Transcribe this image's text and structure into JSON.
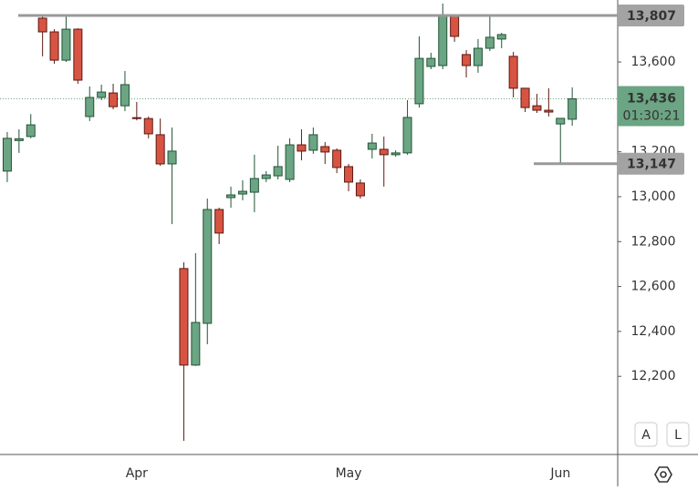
{
  "chart_data": {
    "type": "candlestick",
    "categories": [
      null,
      null,
      null,
      null,
      null,
      null,
      null,
      null,
      null,
      null,
      null,
      "Apr",
      null,
      null,
      null,
      null,
      null,
      null,
      null,
      null,
      null,
      null,
      null,
      null,
      null,
      null,
      null,
      null,
      null,
      "May",
      null,
      null,
      null,
      null,
      null,
      null,
      null,
      null,
      null,
      null,
      null,
      null,
      null,
      null,
      null,
      null,
      null,
      "Jun",
      null
    ],
    "open": [
      13114,
      13250,
      13268,
      13795,
      13734,
      13608,
      13746,
      13357,
      13442,
      13462,
      13405,
      13352,
      13348,
      13276,
      13146,
      12680,
      12250,
      12436,
      12943,
      12996,
      13012,
      13020,
      13081,
      13093,
      13077,
      13231,
      13207,
      13223,
      13207,
      13134,
      13061,
      13211,
      13211,
      13187,
      13195,
      13414,
      13580,
      13584,
      13803,
      13633,
      13584,
      13661,
      13702,
      13625,
      13483,
      13405,
      13385,
      13324,
      13345
    ],
    "high": [
      13288,
      13300,
      13368,
      13803,
      13746,
      13803,
      13750,
      13491,
      13499,
      13503,
      13560,
      13422,
      13357,
      13348,
      13308,
      12708,
      12749,
      12992,
      12951,
      13045,
      13073,
      13187,
      13114,
      13227,
      13260,
      13300,
      13308,
      13243,
      13215,
      13146,
      13077,
      13280,
      13268,
      13207,
      13430,
      13714,
      13641,
      13860,
      13811,
      13653,
      13702,
      13803,
      13730,
      13645,
      13483,
      13458,
      13483,
      13349,
      13487
    ],
    "low": [
      13065,
      13195,
      13260,
      13625,
      13592,
      13600,
      13503,
      13337,
      13430,
      13389,
      13381,
      13340,
      13260,
      13138,
      12878,
      11913,
      12246,
      12343,
      12789,
      12951,
      12984,
      12931,
      13065,
      13077,
      13065,
      13162,
      13191,
      13146,
      13105,
      13024,
      12992,
      13170,
      13045,
      13178,
      13187,
      13397,
      13568,
      13568,
      13690,
      13531,
      13552,
      13649,
      13661,
      13442,
      13377,
      13373,
      13357,
      13147,
      13316
    ],
    "close": [
      13260,
      13258,
      13320,
      13734,
      13608,
      13746,
      13519,
      13442,
      13466,
      13401,
      13499,
      13348,
      13280,
      13146,
      13203,
      12250,
      12440,
      12943,
      12838,
      13008,
      13024,
      13081,
      13097,
      13134,
      13231,
      13203,
      13276,
      13199,
      13130,
      13065,
      13004,
      13239,
      13187,
      13195,
      13353,
      13616,
      13616,
      13803,
      13714,
      13584,
      13661,
      13710,
      13722,
      13483,
      13397,
      13385,
      13377,
      13349,
      13436
    ],
    "up_color": "#6ba583",
    "down_color": "#d75442",
    "ylim": [
      11852,
      13876
    ],
    "yticks": [
      {
        "value": 12200,
        "label": "12,200"
      },
      {
        "value": 12400,
        "label": "12,400"
      },
      {
        "value": 12600,
        "label": "12,600"
      },
      {
        "value": 12800,
        "label": "12,800"
      },
      {
        "value": 13000,
        "label": "13,000"
      },
      {
        "value": 13200,
        "label": "13,200"
      },
      {
        "value": 13400,
        "label": "13,400"
      },
      {
        "value": 13600,
        "label": "13,600"
      }
    ],
    "levels": [
      {
        "value": 13807,
        "label": "13,807"
      },
      {
        "value": 13147,
        "label": "13,147"
      }
    ],
    "last_price": {
      "value": 13436,
      "label": "13,436",
      "countdown": "01:30:21"
    },
    "buttons": [
      "A",
      "L"
    ]
  }
}
